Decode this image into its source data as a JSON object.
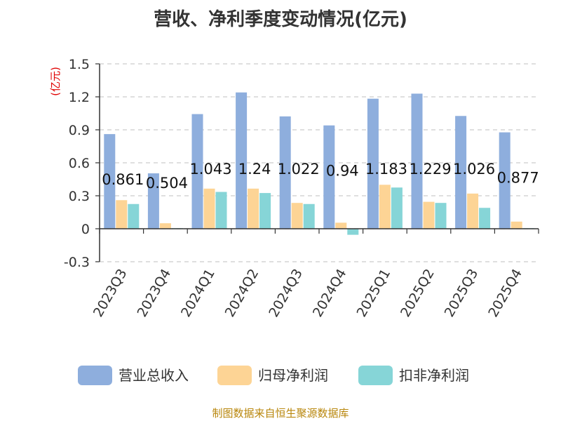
{
  "chart_data": {
    "type": "bar",
    "title": "营收、净利季度变动情况(亿元)",
    "unit_label": "(亿元)",
    "categories": [
      "2023Q3",
      "2023Q4",
      "2024Q1",
      "2024Q2",
      "2024Q3",
      "2024Q4",
      "2025Q1",
      "2025Q2",
      "2025Q3",
      "2025Q4"
    ],
    "series": [
      {
        "name": "营业总收入",
        "color": "#8eaedd",
        "values": [
          0.861,
          0.504,
          1.043,
          1.24,
          1.022,
          0.94,
          1.183,
          1.229,
          1.026,
          0.877
        ]
      },
      {
        "name": "归母净利润",
        "color": "#fdd495",
        "values": [
          0.26,
          0.05,
          0.365,
          0.365,
          0.235,
          0.055,
          0.4,
          0.245,
          0.32,
          0.065
        ]
      },
      {
        "name": "扣非净利润",
        "color": "#86d5d7",
        "values": [
          0.225,
          0.005,
          0.335,
          0.325,
          0.225,
          -0.055,
          0.375,
          0.235,
          0.19,
          0.005
        ]
      }
    ],
    "data_labels": [
      "0.861",
      "0.504",
      "1.043",
      "1.24",
      "1.022",
      "0.94",
      "1.183",
      "1.229",
      "1.026",
      "0.877"
    ],
    "ylim": [
      -0.3,
      1.5
    ],
    "yticks": [
      "-0.3",
      "0",
      "0.3",
      "0.6",
      "0.9",
      "1.2",
      "1.5"
    ],
    "grid": true,
    "legend_position": "bottom"
  },
  "footer": {
    "source": "制图数据来自恒生聚源数据库"
  }
}
